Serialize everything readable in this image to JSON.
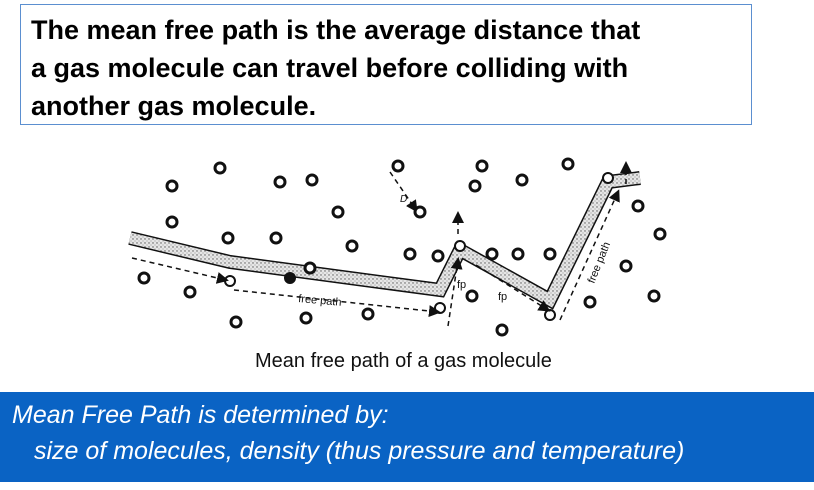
{
  "definition": {
    "line1": "The mean free path is the average distance that",
    "line2": "a gas molecule can travel before colliding with",
    "line3": "another gas molecule."
  },
  "diagram": {
    "label_free_path": "free path",
    "label_fp1": "fp",
    "label_fp2": "fp",
    "label_free_path_vertical": "free path",
    "label_D": "D",
    "caption": "Mean free path of a gas molecule"
  },
  "footer": {
    "line1": "Mean Free Path is determined by:",
    "line2": "size of molecules, density (thus pressure and temperature)"
  },
  "colors": {
    "box_border": "#5b8fd0",
    "footer_background": "#0a63c4",
    "footer_text": "#ffffff"
  }
}
